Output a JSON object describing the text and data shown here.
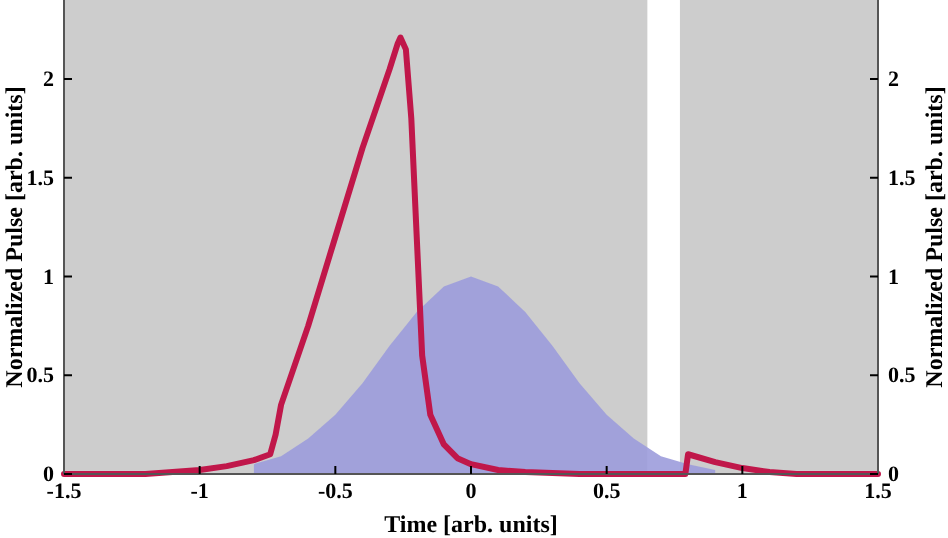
{
  "chart_data": {
    "type": "line",
    "xlabel": "Time [arb. units]",
    "ylabel": "Normalized Pulse [arb. units]",
    "y2label": "Normalized Pulse [arb. units]",
    "xlim": [
      -1.5,
      1.5
    ],
    "xticks": [
      -1.5,
      -1,
      -0.5,
      0,
      0.5,
      1,
      1.5
    ],
    "ylim": [
      0,
      2.4
    ],
    "yticks": [
      0,
      0.5,
      1,
      1.5,
      2
    ],
    "y2lim": [
      0,
      2.4
    ],
    "y2ticks": [
      0,
      0.5,
      1,
      1.5,
      2
    ],
    "bands": [
      {
        "axis": "x",
        "from": -1.5,
        "to": 0.65,
        "color": "#cdcdcd"
      },
      {
        "axis": "x",
        "from": 0.77,
        "to": 1.5,
        "color": "#cdcdcd"
      }
    ],
    "series": [
      {
        "type": "area",
        "color": "#9c9cdc",
        "x": [
          -0.8,
          -0.7,
          -0.6,
          -0.5,
          -0.4,
          -0.3,
          -0.2,
          -0.1,
          0,
          0.1,
          0.2,
          0.3,
          0.4,
          0.5,
          0.6,
          0.7,
          0.8,
          0.9
        ],
        "values": [
          0.05,
          0.09,
          0.18,
          0.3,
          0.46,
          0.65,
          0.82,
          0.95,
          1,
          0.95,
          0.82,
          0.65,
          0.46,
          0.3,
          0.18,
          0.09,
          0.05,
          0.02
        ]
      },
      {
        "color": "#c0174a",
        "x": [
          -1.5,
          -1.2,
          -1,
          -0.9,
          -0.8,
          -0.74,
          -0.72,
          -0.7,
          -0.6,
          -0.5,
          -0.4,
          -0.3,
          -0.27,
          -0.26,
          -0.24,
          -0.22,
          -0.2,
          -0.18,
          -0.15,
          -0.1,
          -0.05,
          0,
          0.1,
          0.2,
          0.4,
          0.6,
          0.79,
          0.8,
          0.9,
          1,
          1.1,
          1.2,
          1.5
        ],
        "values": [
          0,
          0,
          0.02,
          0.04,
          0.07,
          0.1,
          0.2,
          0.35,
          0.75,
          1.2,
          1.65,
          2.05,
          2.18,
          2.21,
          2.15,
          1.8,
          1.2,
          0.6,
          0.3,
          0.15,
          0.08,
          0.05,
          0.02,
          0.01,
          0,
          0,
          0,
          0.1,
          0.06,
          0.03,
          0.01,
          0,
          0
        ]
      }
    ]
  }
}
